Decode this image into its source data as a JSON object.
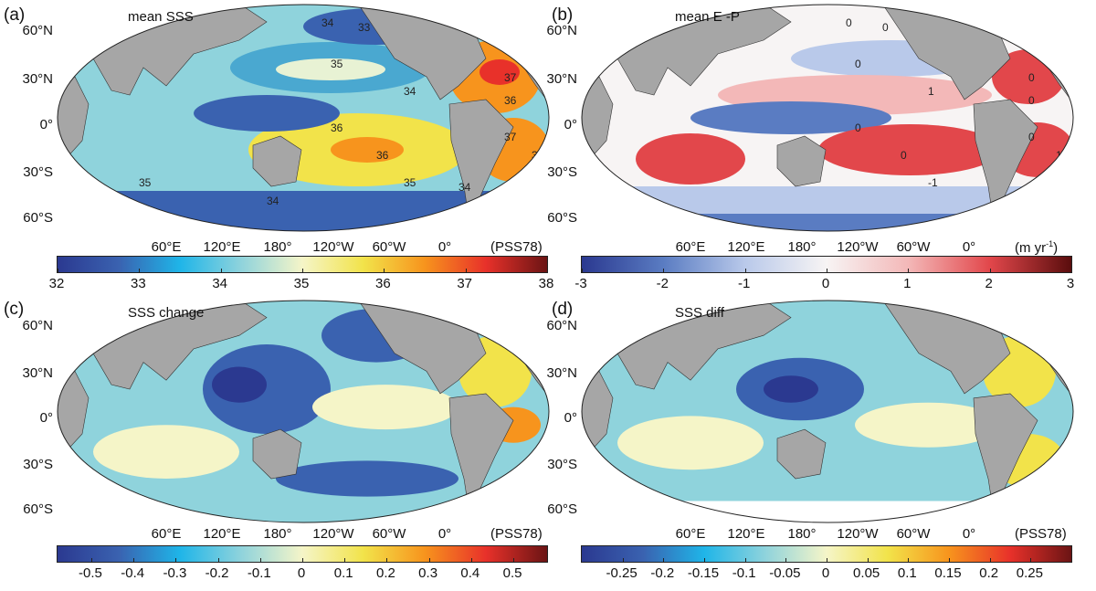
{
  "colors": {
    "land": "#a6a6a6",
    "blue_dark": "#2b3990",
    "cyan": "#1fb5e8",
    "neutral": "#f5f5c8",
    "yellow": "#f2e34a",
    "orange": "#f7941d",
    "red": "#e8312a",
    "red_dark": "#6b1414"
  },
  "lat_labels": [
    "60°N",
    "30°N",
    "0°",
    "30°S",
    "60°S"
  ],
  "lon_labels": [
    "60°E",
    "120°E",
    "180°",
    "120°W",
    "60°W",
    "0°"
  ],
  "panels": [
    {
      "label": "(a)",
      "title": "mean SSS",
      "unit": "(PSS78)",
      "colormap": "salinity",
      "range": [
        32,
        38
      ],
      "ticks": [
        "32",
        "33",
        "34",
        "35",
        "36",
        "37",
        "38"
      ],
      "tick_values": [
        32,
        33,
        34,
        35,
        36,
        37,
        38
      ],
      "contour_labels": [
        "34",
        "33",
        "35",
        "34",
        "36",
        "37",
        "36",
        "35",
        "36",
        "37",
        "35",
        "35",
        "34",
        "34",
        "35"
      ]
    },
    {
      "label": "(b)",
      "title": "mean E -P",
      "unit": "(m yr",
      "unit_sup": "-1",
      "unit_end": ")",
      "colormap": "diverging",
      "range": [
        -3,
        3
      ],
      "ticks": [
        "-3",
        "-2",
        "-1",
        "0",
        "1",
        "2",
        "3"
      ],
      "tick_values": [
        -3,
        -2,
        -1,
        0,
        1,
        2,
        3
      ],
      "contour_labels": [
        "0",
        "0",
        "0",
        "1",
        "0",
        "0",
        "0",
        "1",
        "0",
        "0",
        "-1"
      ]
    },
    {
      "label": "(c)",
      "title": "SSS change",
      "unit": "(PSS78)",
      "colormap": "salinity",
      "range": [
        -0.58,
        0.58
      ],
      "ticks": [
        "-0.5",
        "-0.4",
        "-0.3",
        "-0.2",
        "-0.1",
        "0",
        "0.1",
        "0.2",
        "0.3",
        "0.4",
        "0.5"
      ],
      "tick_values": [
        -0.5,
        -0.4,
        -0.3,
        -0.2,
        -0.1,
        0,
        0.1,
        0.2,
        0.3,
        0.4,
        0.5
      ],
      "contour_labels": []
    },
    {
      "label": "(d)",
      "title": "SSS diff",
      "unit": "(PSS78)",
      "colormap": "salinity",
      "range": [
        -0.3,
        0.3
      ],
      "ticks": [
        "-0.25",
        "-0.2",
        "-0.15",
        "-0.1",
        "-0.05",
        "0",
        "0.05",
        "0.1",
        "0.15",
        "0.2",
        "0.25"
      ],
      "tick_values": [
        -0.25,
        -0.2,
        -0.15,
        -0.1,
        -0.05,
        0,
        0.05,
        0.1,
        0.15,
        0.2,
        0.25
      ],
      "contour_labels": []
    }
  ]
}
